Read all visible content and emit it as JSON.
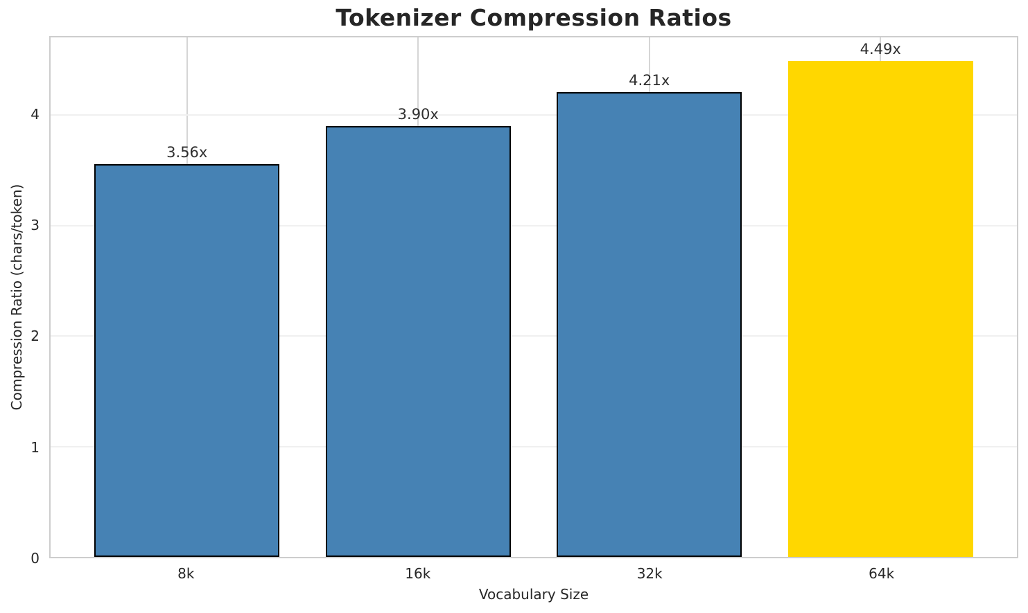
{
  "chart_data": {
    "type": "bar",
    "title": "Tokenizer Compression Ratios",
    "xlabel": "Vocabulary Size",
    "ylabel": "Compression Ratio (chars/token)",
    "categories": [
      "8k",
      "16k",
      "32k",
      "64k"
    ],
    "values": [
      3.56,
      3.9,
      4.21,
      4.49
    ],
    "value_labels": [
      "3.56x",
      "3.90x",
      "4.21x",
      "4.49x"
    ],
    "bar_colors": [
      "#4682B4",
      "#4682B4",
      "#4682B4",
      "#FFD700"
    ],
    "bar_edge_colors": [
      "#000000",
      "#000000",
      "#000000",
      "none"
    ],
    "yticks": [
      0,
      1,
      2,
      3,
      4
    ],
    "ylim": [
      0,
      4.705
    ],
    "xlim": [
      -0.59,
      3.59
    ],
    "bar_width": 0.8,
    "grid": true,
    "legend_position": "none",
    "colors": {
      "accent_blue": "#4682B4",
      "highlight_gold": "#FFD700",
      "text": "#262626",
      "spine": "#cdcdcd",
      "hgrid": "#f0f0f0",
      "vgrid": "#d5d5d5"
    }
  }
}
